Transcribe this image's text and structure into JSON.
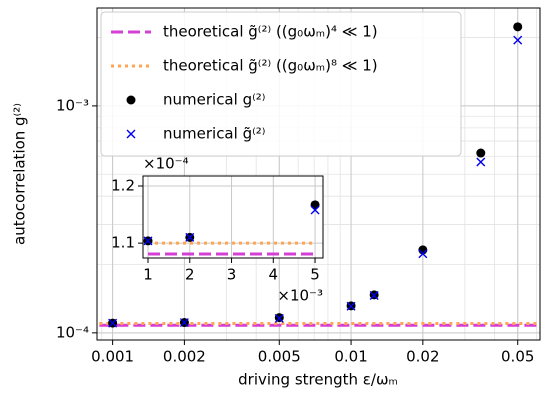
{
  "chart_data": [
    {
      "type": "line",
      "xlabel": "driving strength ε/ωₘ",
      "ylabel": "autocorrelation g⁽²⁾",
      "xscale": "log",
      "yscale": "log",
      "grid": true,
      "minor_grid": true,
      "legend": "upper left",
      "xlim": [
        0.00086,
        0.062
      ],
      "ylim": [
        9.3e-05,
        0.0027
      ],
      "xticks": [
        0.001,
        0.002,
        0.005,
        0.01,
        0.02,
        0.05
      ],
      "yticks": [
        {
          "value": 0.0001,
          "label": "10⁻⁴"
        },
        {
          "value": 0.001,
          "label": "10⁻³"
        }
      ],
      "series": [
        {
          "name": "theoretical g̃⁽²⁾ ((g₀ωₘ)⁴ ≪ 1)",
          "color": "#d63fd6",
          "linestyle": "dashed",
          "marker": "none",
          "x": [
            0.00088,
            0.06
          ],
          "values": [
            0.000108,
            0.000108
          ]
        },
        {
          "name": "theoretical g̃⁽²⁾ ((g₀ωₘ)⁸ ≪ 1)",
          "color": "#ffa552",
          "linestyle": "dotted",
          "marker": "none",
          "x": [
            0.00088,
            0.06
          ],
          "values": [
            0.00011,
            0.00011
          ]
        },
        {
          "name": "numerical g⁽²⁾",
          "color": "#000000",
          "linestyle": "none",
          "marker": "dot",
          "x": [
            0.001,
            0.002,
            0.005,
            0.01,
            0.0125,
            0.02,
            0.035,
            0.05
          ],
          "values": [
            0.0001104,
            0.000111,
            0.0001167,
            0.0001315,
            0.000147,
            0.000232,
            0.00062,
            0.00223
          ]
        },
        {
          "name": "numerical g̃⁽²⁾",
          "color": "#0000ee",
          "linestyle": "none",
          "marker": "cross",
          "x": [
            0.001,
            0.002,
            0.005,
            0.01,
            0.0125,
            0.02,
            0.035,
            0.05
          ],
          "values": [
            0.0001104,
            0.000111,
            0.0001158,
            0.000131,
            0.000146,
            0.000223,
            0.000566,
            0.00195
          ]
        }
      ]
    },
    {
      "type": "line",
      "grid": true,
      "xlim": [
        0.88,
        5.19
      ],
      "ylim": [
        1.074,
        1.2175
      ],
      "xticks": [
        1,
        2,
        3,
        4,
        5
      ],
      "yticks": [
        1.1,
        1.2
      ],
      "xoffset": "×10⁻³",
      "yoffset": "×10⁻⁴",
      "series": [
        {
          "color": "#d63fd6",
          "linestyle": "dashed",
          "marker": "none",
          "x": [
            1,
            5
          ],
          "values": [
            1.081,
            1.081
          ]
        },
        {
          "color": "#ffa552",
          "linestyle": "dotted",
          "marker": "none",
          "x": [
            1,
            5
          ],
          "values": [
            1.1,
            1.1
          ]
        },
        {
          "color": "#000000",
          "linestyle": "none",
          "marker": "dot",
          "x": [
            1,
            2,
            5
          ],
          "values": [
            1.104,
            1.11,
            1.167
          ]
        },
        {
          "color": "#0000ee",
          "linestyle": "none",
          "marker": "cross",
          "x": [
            1,
            2,
            5
          ],
          "values": [
            1.104,
            1.11,
            1.158
          ]
        }
      ]
    }
  ]
}
